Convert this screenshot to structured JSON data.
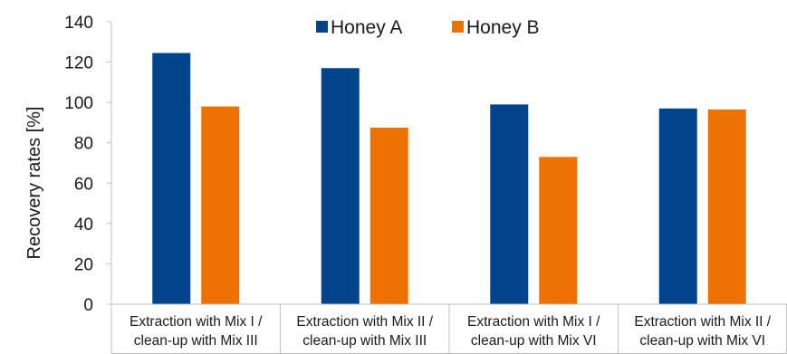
{
  "chart_data": {
    "type": "bar",
    "title": "",
    "xlabel": "",
    "ylabel": "Recovery rates [%]",
    "ylim": [
      0,
      140
    ],
    "yticks": [
      0,
      20,
      40,
      60,
      80,
      100,
      120,
      140
    ],
    "grid": false,
    "legend_position": "top-center",
    "categories": [
      [
        "Extraction with Mix I /",
        "clean-up with Mix III"
      ],
      [
        "Extraction with Mix II /",
        "clean-up with Mix III"
      ],
      [
        "Extraction with Mix I /",
        "clean-up with Mix VI"
      ],
      [
        "Extraction with Mix II /",
        "clean-up with Mix VI"
      ]
    ],
    "series": [
      {
        "name": "Honey A",
        "color": "#02448c",
        "values": [
          124.5,
          117,
          99,
          97
        ]
      },
      {
        "name": "Honey B",
        "color": "#ee7203",
        "values": [
          98,
          87.5,
          73,
          96.5
        ]
      }
    ]
  }
}
